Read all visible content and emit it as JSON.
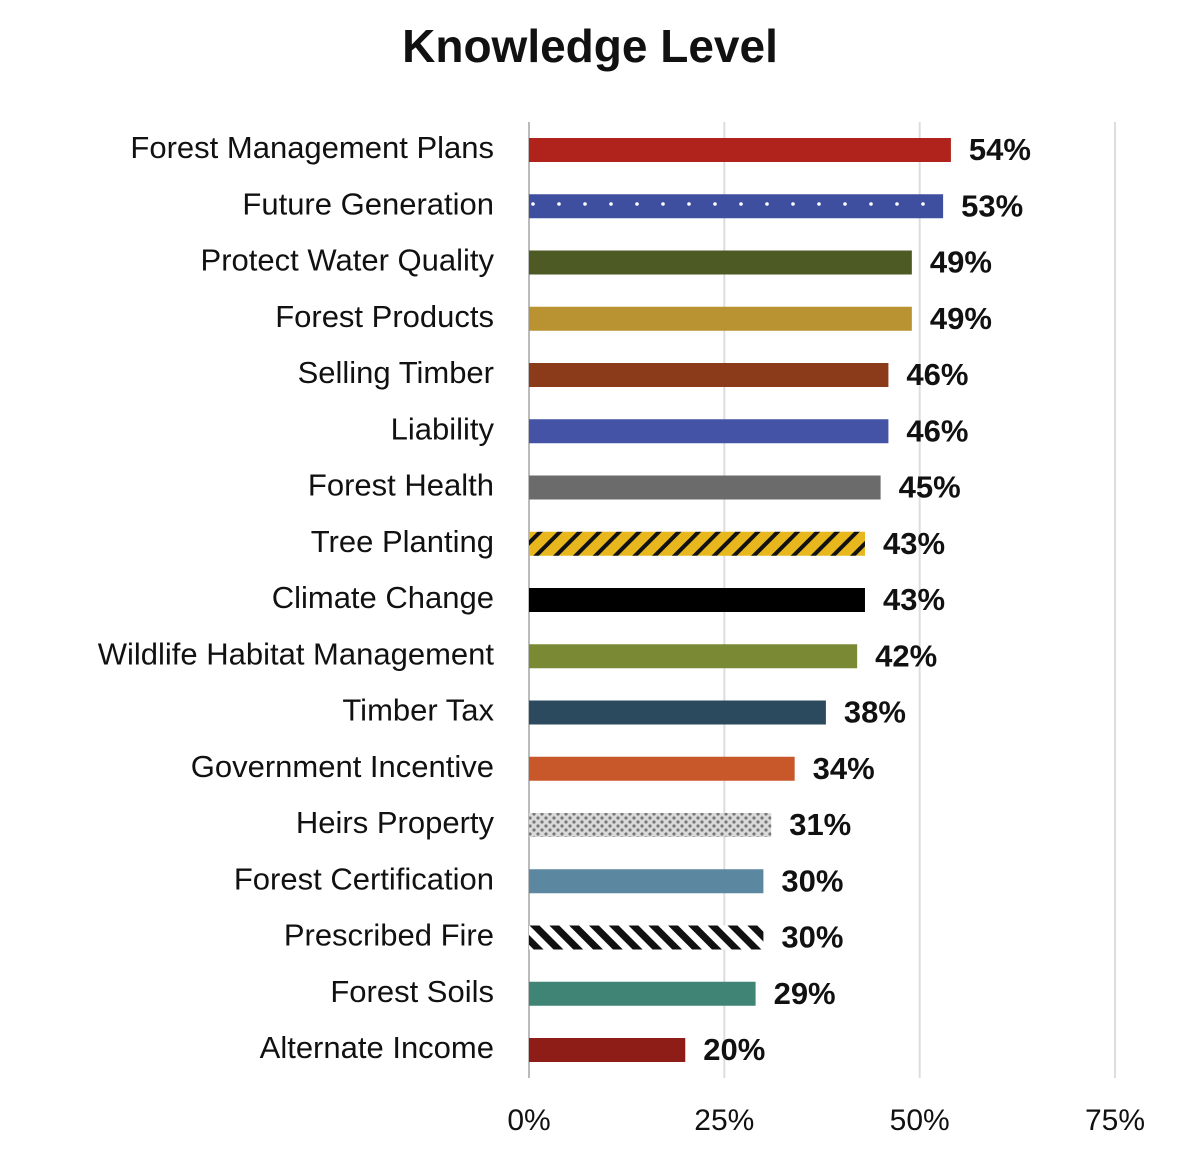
{
  "chart_data": {
    "type": "hbar",
    "title": "Knowledge Level",
    "categories": [
      "Forest Management Plans",
      "Future Generation",
      "Protect Water Quality",
      "Forest Products",
      "Selling Timber",
      "Liability",
      "Forest Health",
      "Tree Planting",
      "Climate Change",
      "Wildlife Habitat Management",
      "Timber Tax",
      "Government Incentive",
      "Heirs Property",
      "Forest Certification",
      "Prescribed Fire",
      "Forest Soils",
      "Alternate Income"
    ],
    "values": [
      54,
      53,
      49,
      49,
      46,
      46,
      45,
      43,
      43,
      42,
      38,
      34,
      31,
      30,
      30,
      29,
      20
    ],
    "value_labels": [
      "54%",
      "53%",
      "49%",
      "49%",
      "46%",
      "46%",
      "45%",
      "43%",
      "43%",
      "42%",
      "38%",
      "34%",
      "31%",
      "30%",
      "30%",
      "29%",
      "20%"
    ],
    "colors": [
      "#b0231c",
      "#3f4fa0",
      "#4e5a24",
      "#b99232",
      "#8b3a1a",
      "#4453a6",
      "#6b6b6b",
      "#e8b71e",
      "#000000",
      "#7a8a34",
      "#2c4a5e",
      "#c8582a",
      "#d9d9d9",
      "#5b87a0",
      "#ffffff",
      "#3f8474",
      "#8f1d17"
    ],
    "patterns": [
      null,
      "white-dots",
      null,
      null,
      null,
      null,
      null,
      "black-hatch",
      null,
      null,
      null,
      null,
      "gray-dots",
      null,
      "black-stripes",
      null,
      null
    ],
    "xlim": [
      0,
      75
    ],
    "xticks": [
      {
        "value": 0,
        "label": "0%"
      },
      {
        "value": 25,
        "label": "25%"
      },
      {
        "value": 50,
        "label": "50%"
      },
      {
        "value": 75,
        "label": "75%"
      }
    ],
    "grid": true
  }
}
